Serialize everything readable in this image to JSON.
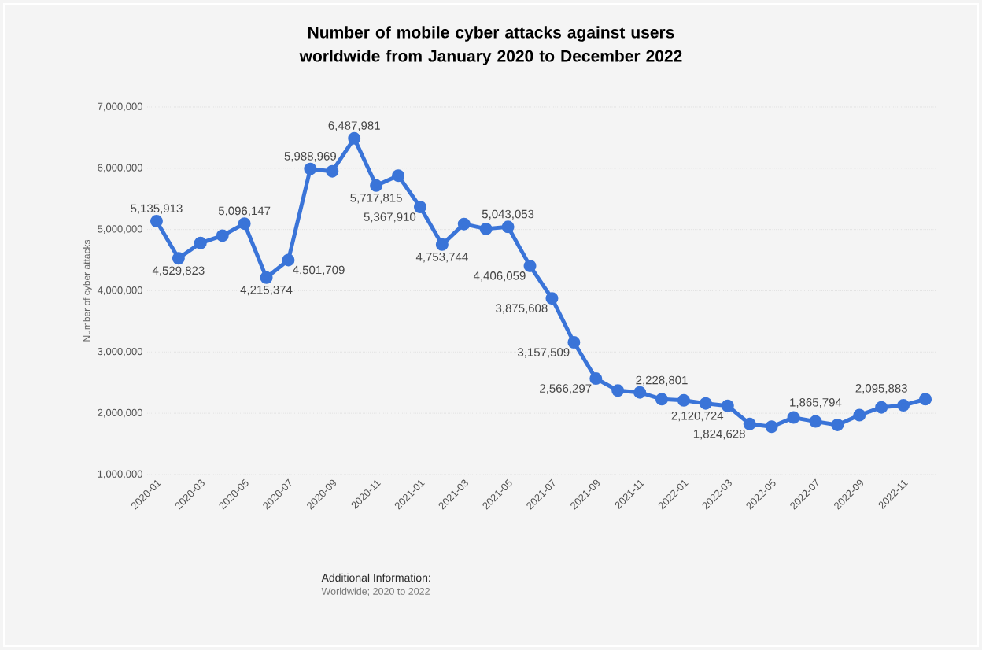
{
  "chart_data": {
    "type": "line",
    "title": "Number of mobile cyber attacks against users worldwide from January 2020 to December 2022",
    "ylabel": "Number of cyber attacks",
    "categories": [
      "2020-01",
      null,
      "2020-03",
      null,
      "2020-05",
      null,
      "2020-07",
      null,
      "2020-09",
      null,
      "2020-11",
      null,
      "2021-01",
      null,
      "2021-03",
      null,
      "2021-05",
      null,
      "2021-07",
      null,
      "2021-09",
      null,
      "2021-11",
      null,
      "2022-01",
      null,
      "2022-03",
      null,
      "2022-05",
      null,
      "2022-07",
      null,
      "2022-09",
      null,
      "2022-11",
      null
    ],
    "values": [
      5135913,
      4529823,
      4780000,
      4900000,
      5096147,
      4215374,
      4501709,
      5988969,
      5950000,
      6487981,
      5717815,
      5880000,
      5367910,
      4753744,
      5090000,
      5010000,
      5043053,
      4406059,
      3875608,
      3157509,
      2566297,
      2370000,
      2340000,
      2228801,
      2210000,
      2160000,
      2120724,
      1824628,
      1780000,
      1930000,
      1865794,
      1810000,
      1970000,
      2095883,
      2130000,
      2230000
    ],
    "value_labels": [
      "5,135,913",
      "4,529,823",
      null,
      null,
      "5,096,147",
      "4,215,374",
      "4,501,709",
      "5,988,969",
      null,
      "6,487,981",
      "5,717,815",
      null,
      "5,367,910",
      "4,753,744",
      null,
      null,
      "5,043,053",
      "4,406,059",
      "3,875,608",
      "3,157,509",
      "2,566,297",
      null,
      null,
      "2,228,801",
      null,
      null,
      "2,120,724",
      "1,824,628",
      null,
      null,
      "1,865,794",
      null,
      null,
      "2,095,883",
      null,
      null
    ],
    "color": "#3a74d8",
    "marker": "circle",
    "line_style": "solid",
    "grid": "y",
    "ylim": [
      1000000,
      7000000
    ],
    "yticks": [
      {
        "value": 1000000,
        "label": "1,000,000"
      },
      {
        "value": 2000000,
        "label": "2,000,000"
      },
      {
        "value": 3000000,
        "label": "3,000,000"
      },
      {
        "value": 4000000,
        "label": "4,000,000"
      },
      {
        "value": 5000000,
        "label": "5,000,000"
      },
      {
        "value": 6000000,
        "label": "6,000,000"
      },
      {
        "value": 7000000,
        "label": "7,000,000"
      }
    ],
    "annotations": [
      "Additional Information:",
      "Worldwide; 2020 to 2022"
    ]
  }
}
